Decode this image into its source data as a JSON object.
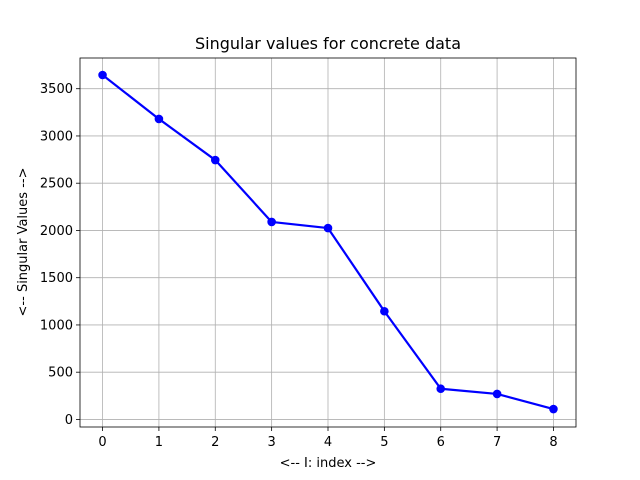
{
  "chart_data": {
    "type": "line",
    "title": "Singular values for concrete data",
    "xlabel": "<-- I: index -->",
    "ylabel": "<-- Singular Values -->",
    "x": [
      0,
      1,
      2,
      3,
      4,
      5,
      6,
      7,
      8
    ],
    "series": [
      {
        "values": [
          3645,
          3180,
          2745,
          2090,
          2025,
          1145,
          325,
          270,
          110
        ],
        "color": "#0000ff",
        "marker": "circle"
      }
    ],
    "xlim": [
      -0.4,
      8.4
    ],
    "ylim": [
      -80,
      3825
    ],
    "xticks": [
      0,
      1,
      2,
      3,
      4,
      5,
      6,
      7,
      8
    ],
    "yticks": [
      0,
      500,
      1000,
      1500,
      2000,
      2500,
      3000,
      3500
    ],
    "xtick_labels": [
      "0",
      "1",
      "2",
      "3",
      "4",
      "5",
      "6",
      "7",
      "8"
    ],
    "ytick_labels": [
      "0",
      "500",
      "1000",
      "1500",
      "2000",
      "2500",
      "3000",
      "3500"
    ],
    "grid": true,
    "legend": "none"
  }
}
